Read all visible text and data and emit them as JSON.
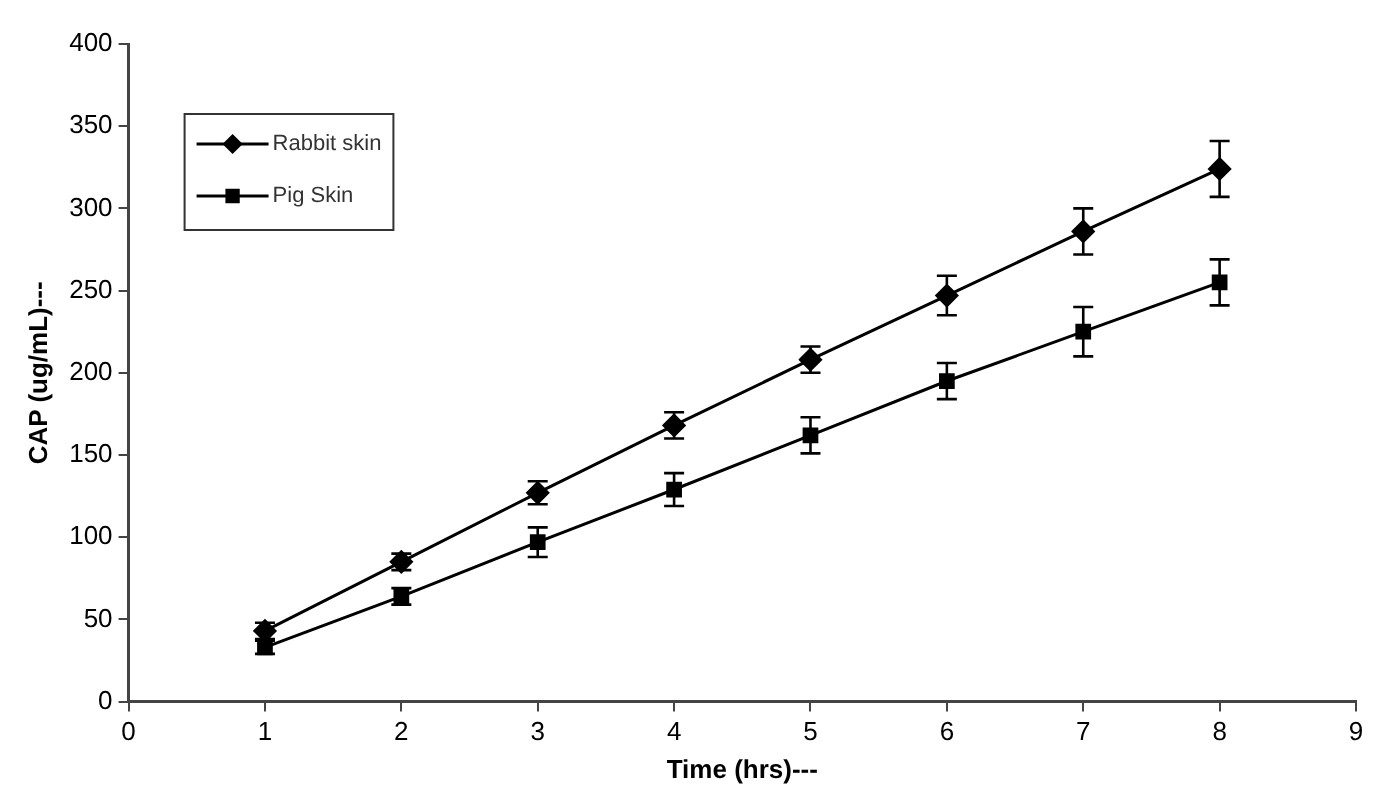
{
  "chart_data": {
    "type": "line",
    "xlabel": "Time (hrs)---",
    "ylabel": "CAP (ug/mL)---",
    "x": [
      1,
      2,
      3,
      4,
      5,
      6,
      7,
      8
    ],
    "xlim": [
      0,
      9
    ],
    "xticks": [
      0,
      1,
      2,
      3,
      4,
      5,
      6,
      7,
      8,
      9
    ],
    "ylim": [
      0,
      400
    ],
    "yticks": [
      0,
      50,
      100,
      150,
      200,
      250,
      300,
      350,
      400
    ],
    "grid": false,
    "legend": "top left",
    "line_style": "solid",
    "series": [
      {
        "name": "Rabbit skin",
        "color": "#000000",
        "marker": "diamond",
        "values": [
          43,
          85,
          127,
          168,
          208,
          247,
          286,
          324
        ],
        "errors": [
          5,
          5,
          7,
          8,
          8,
          12,
          14,
          17
        ]
      },
      {
        "name": "Pig Skin",
        "color": "#000000",
        "marker": "square",
        "values": [
          33,
          64,
          97,
          129,
          162,
          195,
          225,
          255
        ],
        "errors": [
          4,
          5,
          9,
          10,
          11,
          11,
          15,
          14
        ]
      }
    ]
  }
}
